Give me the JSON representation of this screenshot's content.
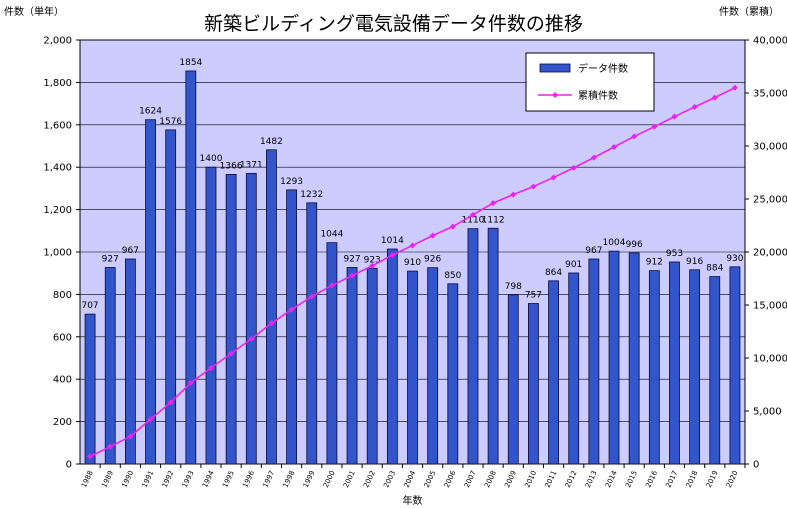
{
  "chart_data": {
    "type": "bar",
    "title": "新築ビルディング電気設備データ件数の推移",
    "xlabel": "年数",
    "ylabel": "件数（単年）",
    "y2label": "件数（累積）",
    "ylim": [
      0,
      2000
    ],
    "y2lim": [
      0,
      40000
    ],
    "yticks": [
      "0",
      "200",
      "400",
      "600",
      "800",
      "1,000",
      "1,200",
      "1,400",
      "1,600",
      "1,800",
      "2,000"
    ],
    "y2ticks": [
      "0",
      "5,000",
      "10,000",
      "15,000",
      "20,000",
      "25,000",
      "30,000",
      "35,000",
      "40,000"
    ],
    "grid": true,
    "legend_position": "top-right",
    "categories": [
      "1988",
      "1989",
      "1990",
      "1991",
      "1992",
      "1993",
      "1994",
      "1995",
      "1996",
      "1997",
      "1998",
      "1999",
      "2000",
      "2001",
      "2002",
      "2003",
      "2004",
      "2005",
      "2006",
      "2007",
      "2008",
      "2009",
      "2010",
      "2011",
      "2012",
      "2013",
      "2014",
      "2015",
      "2016",
      "2017",
      "2018",
      "2019",
      "2020"
    ],
    "series": [
      {
        "name": "データ件数",
        "type": "bar",
        "axis": "left",
        "values": [
          707,
          927,
          967,
          1624,
          1576,
          1854,
          1400,
          1366,
          1371,
          1482,
          1293,
          1232,
          1044,
          927,
          923,
          1014,
          910,
          926,
          850,
          1110,
          1112,
          798,
          757,
          864,
          901,
          967,
          1004,
          996,
          912,
          953,
          916,
          884,
          930
        ],
        "labels": [
          "707",
          "927",
          "967",
          "1624",
          "1576",
          "1854",
          "1400",
          "1366",
          "1371",
          "1482",
          "1293",
          "1232",
          "1044",
          "927",
          "923",
          "1014",
          "910",
          "926",
          "850",
          "1110",
          "1112",
          "798",
          "757",
          "864",
          "901",
          "967",
          "1004",
          "996",
          "912",
          "953",
          "916",
          "884",
          "930"
        ]
      },
      {
        "name": "累積件数",
        "type": "line",
        "axis": "right",
        "values": [
          707,
          1634,
          2601,
          4225,
          5801,
          7655,
          9055,
          10421,
          11792,
          13274,
          14567,
          15799,
          16843,
          17770,
          18693,
          19707,
          20617,
          21543,
          22393,
          23503,
          24615,
          25413,
          26170,
          27034,
          27935,
          28902,
          29906,
          30902,
          31814,
          32767,
          33683,
          34567,
          35497
        ]
      }
    ],
    "colors": {
      "plot_background": "#CCCCFF",
      "bar_fill": "#3355CC",
      "bar_stroke": "#0A0A3A",
      "line": "#EE22EE"
    }
  }
}
